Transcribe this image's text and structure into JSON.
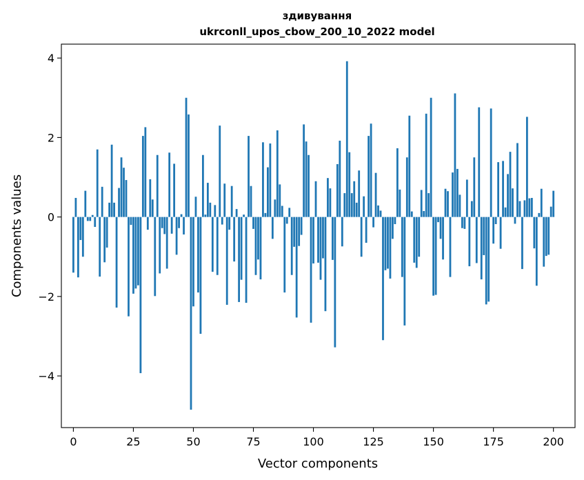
{
  "chart_data": {
    "type": "bar",
    "title_line1": "здивування",
    "title_line2": "ukrconll_upos_cbow_200_10_2022 model",
    "xlabel": "Vector components",
    "ylabel": "Components values",
    "xlim": [
      -5,
      209
    ],
    "ylim": [
      -5.3,
      4.35
    ],
    "xticks": [
      0,
      25,
      50,
      75,
      100,
      125,
      150,
      175,
      200
    ],
    "yticks": [
      -4,
      -2,
      0,
      2,
      4
    ],
    "ytick_labels": [
      "−4",
      "−2",
      "0",
      "2",
      "4"
    ],
    "bar_color": "#1f77b4",
    "grid": false,
    "values": [
      -1.4,
      0.48,
      -1.52,
      -0.58,
      -1.0,
      0.66,
      -0.1,
      -0.1,
      0.05,
      -0.25,
      1.7,
      -1.5,
      0.76,
      -1.14,
      -0.77,
      0.36,
      1.82,
      0.36,
      -2.28,
      0.73,
      1.5,
      1.24,
      0.93,
      -2.5,
      -0.2,
      -1.93,
      -1.8,
      -1.72,
      -3.93,
      2.04,
      2.26,
      -0.32,
      0.95,
      0.44,
      -1.99,
      1.56,
      -1.42,
      -0.28,
      -0.43,
      -1.3,
      1.62,
      -0.42,
      1.34,
      -0.95,
      -0.28,
      0.07,
      -0.44,
      3.0,
      2.58,
      -4.85,
      -2.25,
      0.51,
      -1.9,
      -2.94,
      1.56,
      0.06,
      0.86,
      0.36,
      -1.38,
      0.3,
      -1.46,
      2.3,
      -0.19,
      0.84,
      -2.21,
      -0.32,
      0.78,
      -1.12,
      0.2,
      -2.14,
      -1.58,
      0.06,
      -2.16,
      2.04,
      0.78,
      -0.3,
      -1.46,
      -1.07,
      -1.57,
      1.88,
      0.1,
      1.25,
      1.85,
      -0.55,
      0.44,
      2.18,
      0.82,
      0.28,
      -1.9,
      -0.17,
      0.23,
      -1.46,
      -0.75,
      -2.53,
      -0.73,
      -0.45,
      2.33,
      1.9,
      1.56,
      -2.66,
      -1.17,
      0.9,
      -1.15,
      -1.58,
      -1.04,
      -2.37,
      0.98,
      0.72,
      -1.08,
      -3.28,
      1.33,
      1.92,
      -0.74,
      0.6,
      3.92,
      1.63,
      0.6,
      0.9,
      0.36,
      1.17,
      -1.0,
      0.52,
      -0.65,
      2.04,
      2.35,
      -0.26,
      1.11,
      0.29,
      0.16,
      -3.1,
      -1.34,
      -1.3,
      -1.55,
      -0.55,
      -0.18,
      1.73,
      0.69,
      -1.51,
      -2.73,
      1.5,
      2.55,
      0.14,
      -1.15,
      -1.28,
      -1.0,
      0.68,
      0.15,
      2.6,
      0.6,
      3.0,
      -1.98,
      -1.96,
      -0.13,
      -0.55,
      -1.07,
      0.71,
      0.65,
      -1.51,
      1.12,
      3.11,
      1.21,
      0.56,
      -0.28,
      -0.3,
      0.94,
      -1.24,
      0.4,
      1.5,
      -1.16,
      2.76,
      -1.57,
      -0.96,
      -2.2,
      -2.13,
      2.73,
      -0.67,
      -0.18,
      1.38,
      -0.8,
      1.41,
      0.24,
      1.08,
      1.64,
      0.72,
      -0.17,
      1.86,
      0.4,
      -1.31,
      0.42,
      2.52,
      0.47,
      0.48,
      -0.79,
      -1.73,
      0.1,
      0.71,
      -1.25,
      -0.98,
      -0.95,
      0.26,
      0.66
    ]
  }
}
